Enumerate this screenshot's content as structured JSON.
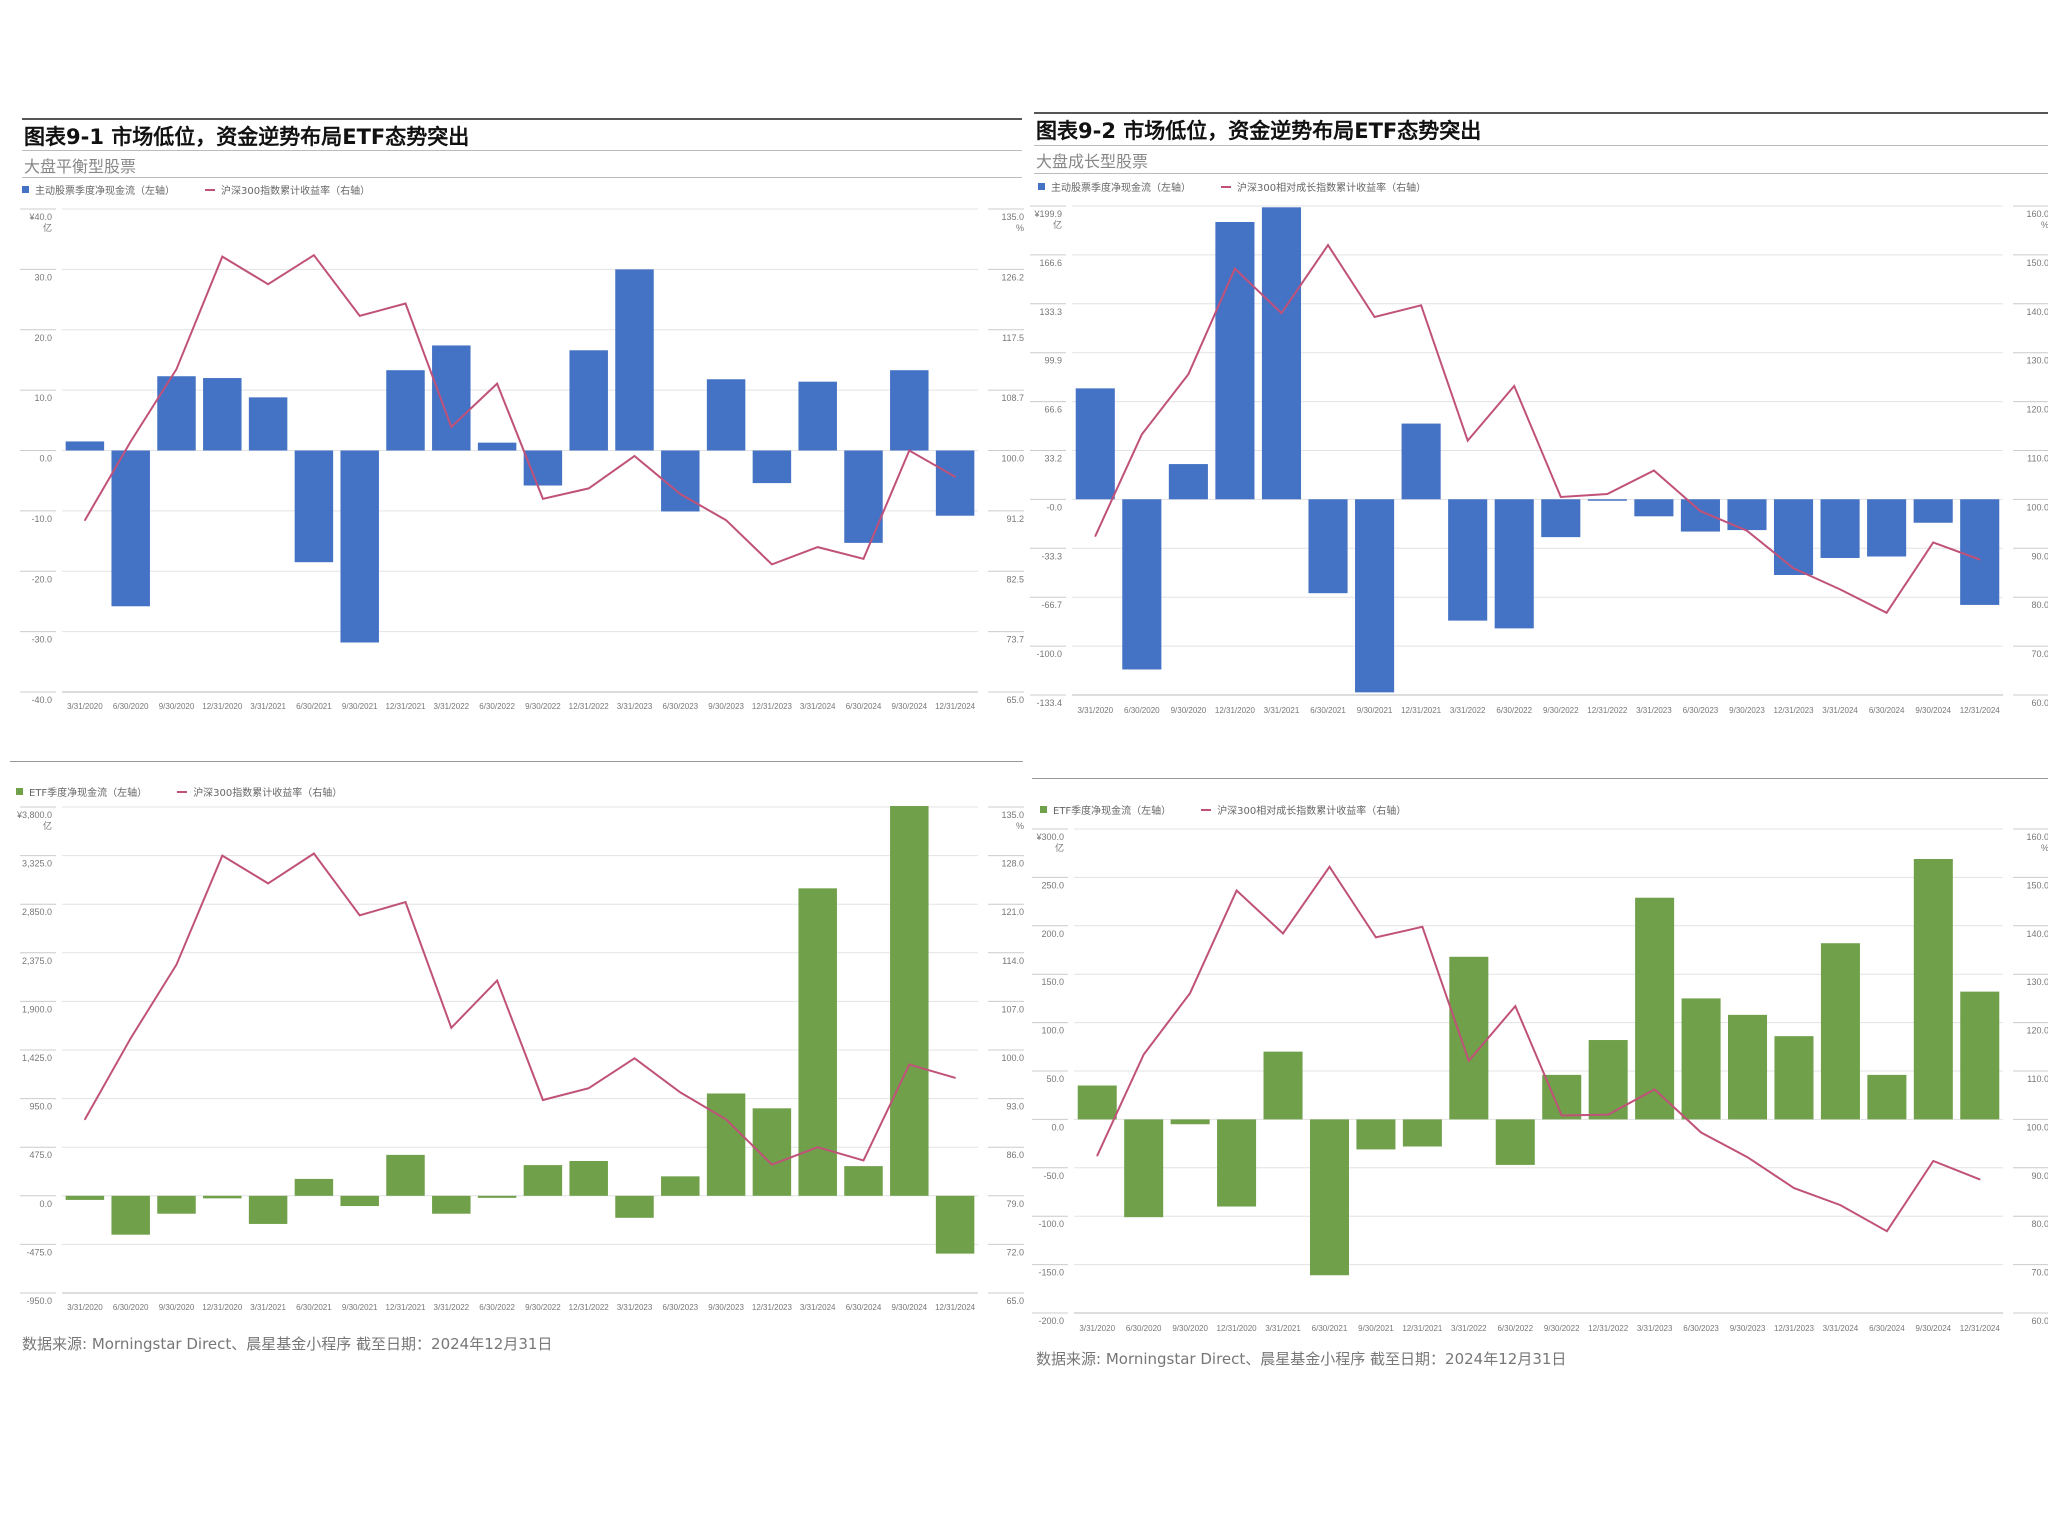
{
  "panels": [
    {
      "title": "图表9-1 市场低位，资金逆势布局ETF态势突出",
      "subtitle": "大盘平衡型股票"
    },
    {
      "title": "图表9-2 市场低位，资金逆势布局ETF态势突出",
      "subtitle": "大盘成长型股票"
    }
  ],
  "footer": "数据来源: Morningstar Direct、晨星基金小程序 截至日期：2024年12月31日",
  "colors": {
    "active_bar": "#4472c4",
    "etf_bar": "#70a04a",
    "line": "#c0527a",
    "grid": "#e3e3e3"
  },
  "chart_data": [
    {
      "type": "bar+line",
      "categories": [
        "3/31/2020",
        "6/30/2020",
        "9/30/2020",
        "12/31/2020",
        "3/31/2021",
        "6/30/2021",
        "9/30/2021",
        "12/31/2021",
        "3/31/2022",
        "6/30/2022",
        "9/30/2022",
        "12/31/2022",
        "3/31/2023",
        "6/30/2023",
        "9/30/2023",
        "12/31/2023",
        "3/31/2024",
        "6/30/2024",
        "9/30/2024",
        "12/31/2024"
      ],
      "series": [
        {
          "name": "主动股票季度净现金流（左轴）",
          "type": "bar",
          "axis": "left",
          "color": "#4472c4",
          "values": [
            1.5,
            -25.8,
            12.3,
            12.0,
            8.8,
            -18.5,
            -31.8,
            13.3,
            17.4,
            1.3,
            -5.8,
            16.6,
            30.0,
            -10.1,
            11.8,
            -5.4,
            11.4,
            -15.3,
            13.3,
            -10.8
          ]
        },
        {
          "name": "沪深300指数累计收益率（右轴）",
          "type": "line",
          "axis": "right",
          "color": "#c0527a",
          "values": [
            89.9,
            101.3,
            111.8,
            128.1,
            124.1,
            128.3,
            119.5,
            121.3,
            103.4,
            109.7,
            93.0,
            94.5,
            99.2,
            93.7,
            89.9,
            83.5,
            86.0,
            84.3,
            100.0,
            96.2
          ]
        }
      ],
      "left_axis": {
        "unit": "亿",
        "ylim": [
          -40,
          40
        ],
        "ticks": [
          "¥40.0",
          "30.0",
          "20.0",
          "10.0",
          "0.0",
          "-10.0",
          "-20.0",
          "-30.0",
          "-40.0"
        ]
      },
      "right_axis": {
        "unit": "%",
        "ylim": [
          65,
          135
        ],
        "ticks": [
          "135.0",
          "126.2",
          "117.5",
          "108.7",
          "100.0",
          "91.2",
          "82.5",
          "73.7",
          "65.0"
        ]
      },
      "grid": true,
      "legend": "top-left"
    },
    {
      "type": "bar+line",
      "categories": [
        "3/31/2020",
        "6/30/2020",
        "9/30/2020",
        "12/31/2020",
        "3/31/2021",
        "6/30/2021",
        "9/30/2021",
        "12/31/2021",
        "3/31/2022",
        "6/30/2022",
        "9/30/2022",
        "12/31/2022",
        "3/31/2023",
        "6/30/2023",
        "9/30/2023",
        "12/31/2023",
        "3/31/2024",
        "6/30/2024",
        "9/30/2024",
        "12/31/2024"
      ],
      "series": [
        {
          "name": "主动股票季度净现金流（左轴）",
          "type": "bar",
          "axis": "left",
          "color": "#4472c4",
          "values": [
            75.6,
            -116,
            24,
            189,
            199,
            -64,
            -131.6,
            51.6,
            -82.7,
            -88,
            -25.8,
            -1,
            -11.6,
            -22,
            -21,
            -51.6,
            -40,
            -39,
            -16,
            -72
          ]
        },
        {
          "name": "沪深300相对成长指数累计收益率（右轴）",
          "type": "line",
          "axis": "right",
          "color": "#c0527a",
          "values": [
            92.5,
            113.3,
            125.6,
            147.2,
            138.1,
            152.0,
            137.3,
            139.7,
            112.0,
            123.2,
            100.5,
            101.1,
            105.9,
            97.6,
            93.6,
            85.9,
            81.6,
            76.8,
            91.2,
            87.7
          ]
        }
      ],
      "left_axis": {
        "unit": "亿",
        "ylim": [
          -133.4,
          199.9
        ],
        "ticks": [
          "¥199.9",
          "166.6",
          "133.3",
          "99.9",
          "66.6",
          "33.2",
          "-0.0",
          "-33.3",
          "-66.7",
          "-100.0",
          "-133.4"
        ]
      },
      "right_axis": {
        "unit": "%",
        "ylim": [
          60,
          160
        ],
        "ticks": [
          "160.0",
          "150.0",
          "140.0",
          "130.0",
          "120.0",
          "110.0",
          "100.0",
          "90.0",
          "80.0",
          "70.0",
          "60.0"
        ]
      },
      "grid": true,
      "legend": "top-left"
    },
    {
      "type": "bar+line",
      "categories": [
        "3/31/2020",
        "6/30/2020",
        "9/30/2020",
        "12/31/2020",
        "3/31/2021",
        "6/30/2021",
        "9/30/2021",
        "12/31/2021",
        "3/31/2022",
        "6/30/2022",
        "9/30/2022",
        "12/31/2022",
        "3/31/2023",
        "6/30/2023",
        "9/30/2023",
        "12/31/2023",
        "3/31/2024",
        "6/30/2024",
        "9/30/2024",
        "12/31/2024"
      ],
      "series": [
        {
          "name": "ETF季度净现金流（左轴）",
          "type": "bar",
          "axis": "left",
          "color": "#70a04a",
          "values": [
            -40,
            -380,
            -175,
            -25,
            -275,
            165,
            -100,
            400,
            -175,
            -20,
            300,
            340,
            -215,
            190,
            1000,
            855,
            3005,
            290,
            3810,
            -565
          ]
        },
        {
          "name": "沪深300指数累计收益率（右轴）",
          "type": "line",
          "axis": "right",
          "color": "#c0527a",
          "values": [
            90.0,
            101.7,
            112.3,
            128.0,
            124.0,
            128.3,
            119.4,
            121.3,
            103.2,
            110.0,
            92.8,
            94.5,
            98.8,
            93.9,
            90.0,
            83.5,
            86.0,
            84.1,
            97.9,
            96.0
          ]
        }
      ],
      "left_axis": {
        "unit": "亿",
        "ylim": [
          -950,
          3800
        ],
        "ticks": [
          "¥3,800.0",
          "3,325.0",
          "2,850.0",
          "2,375.0",
          "1,900.0",
          "1,425.0",
          "950.0",
          "475.0",
          "0.0",
          "-475.0",
          "-950.0"
        ]
      },
      "right_axis": {
        "unit": "%",
        "ylim": [
          65,
          135
        ],
        "ticks": [
          "135.0",
          "128.0",
          "121.0",
          "114.0",
          "107.0",
          "100.0",
          "93.0",
          "86.0",
          "79.0",
          "72.0",
          "65.0"
        ]
      },
      "grid": true,
      "legend": "top-left"
    },
    {
      "type": "bar+line",
      "categories": [
        "3/31/2020",
        "6/30/2020",
        "9/30/2020",
        "12/31/2020",
        "3/31/2021",
        "6/30/2021",
        "9/30/2021",
        "12/31/2021",
        "3/31/2022",
        "6/30/2022",
        "9/30/2022",
        "12/31/2022",
        "3/31/2023",
        "6/30/2023",
        "9/30/2023",
        "12/31/2023",
        "3/31/2024",
        "6/30/2024",
        "9/30/2024",
        "12/31/2024"
      ],
      "series": [
        {
          "name": "ETF季度净现金流（左轴）",
          "type": "bar",
          "axis": "left",
          "color": "#70a04a",
          "values": [
            35,
            -101,
            -5,
            -90,
            70,
            -161,
            -31,
            -28,
            168,
            -47,
            46,
            82,
            229,
            125,
            108,
            86,
            182,
            46,
            269,
            132
          ]
        },
        {
          "name": "沪深300相对成长指数累计收益率（右轴）",
          "type": "line",
          "axis": "right",
          "color": "#c0527a",
          "values": [
            92.5,
            113.4,
            126.1,
            147.3,
            138.4,
            152.2,
            137.6,
            139.8,
            112.1,
            123.4,
            100.8,
            101.0,
            106.2,
            97.3,
            92.2,
            85.8,
            82.3,
            76.9,
            91.4,
            87.6
          ]
        }
      ],
      "left_axis": {
        "unit": "亿",
        "ylim": [
          -200,
          300
        ],
        "ticks": [
          "¥300.0",
          "250.0",
          "200.0",
          "150.0",
          "100.0",
          "50.0",
          "0.0",
          "-50.0",
          "-100.0",
          "-150.0",
          "-200.0"
        ]
      },
      "right_axis": {
        "unit": "%",
        "ylim": [
          60,
          160
        ],
        "ticks": [
          "160.0",
          "150.0",
          "140.0",
          "130.0",
          "120.0",
          "110.0",
          "100.0",
          "90.0",
          "80.0",
          "70.0",
          "60.0"
        ]
      },
      "grid": true,
      "legend": "top-left"
    }
  ]
}
